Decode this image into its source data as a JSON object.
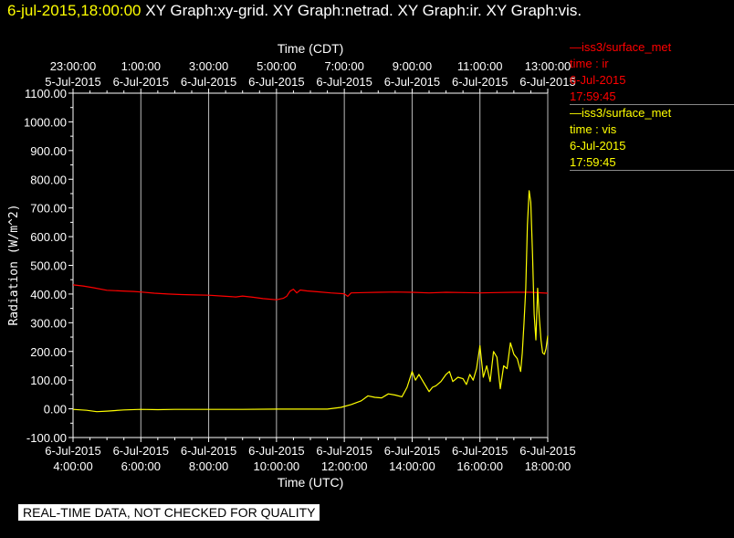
{
  "header": {
    "datetime": "6-jul-2015,18:00:00",
    "graphs": "XY Graph:xy-grid.  XY Graph:netrad.  XY Graph:ir.  XY Graph:vis."
  },
  "legend": {
    "ir": {
      "source": "iss3/surface_met",
      "field": "time : ir",
      "date": "6-Jul-2015",
      "time": "17:59:45"
    },
    "vis": {
      "source": "iss3/surface_met",
      "field": "time : vis",
      "date": "6-Jul-2015",
      "time": "17:59:45"
    }
  },
  "warning": "REAL-TIME DATA, NOT CHECKED FOR QUALITY",
  "colors": {
    "ir": "#ff0000",
    "vis": "#ffff00",
    "grid": "#ffffff",
    "background": "#000000"
  },
  "chart_data": {
    "type": "line",
    "xlabel": "Time (UTC)",
    "x2label": "Time (CDT)",
    "ylabel": "Radiation (W/m^2)",
    "xlim": [
      4.0,
      18.0
    ],
    "ylim": [
      -100,
      1100
    ],
    "yticks": [
      -100,
      0,
      100,
      200,
      300,
      400,
      500,
      600,
      700,
      800,
      900,
      1000,
      1100
    ],
    "ytick_labels": [
      "-100.00",
      "0.00",
      "100.00",
      "200.00",
      "300.00",
      "400.00",
      "500.00",
      "600.00",
      "700.00",
      "800.00",
      "900.00",
      "1000.00",
      "1100.00"
    ],
    "xticks_bottom": [
      {
        "x": 4,
        "date": "6-Jul-2015",
        "time": "4:00:00"
      },
      {
        "x": 6,
        "date": "6-Jul-2015",
        "time": "6:00:00"
      },
      {
        "x": 8,
        "date": "6-Jul-2015",
        "time": "8:00:00"
      },
      {
        "x": 10,
        "date": "6-Jul-2015",
        "time": "10:00:00"
      },
      {
        "x": 12,
        "date": "6-Jul-2015",
        "time": "12:00:00"
      },
      {
        "x": 14,
        "date": "6-Jul-2015",
        "time": "14:00:00"
      },
      {
        "x": 16,
        "date": "6-Jul-2015",
        "time": "16:00:00"
      },
      {
        "x": 18,
        "date": "6-Jul-2015",
        "time": "18:00:00"
      }
    ],
    "xticks_top": [
      {
        "x": 4,
        "time": "23:00:00",
        "date": "5-Jul-2015"
      },
      {
        "x": 6,
        "time": "1:00:00",
        "date": "6-Jul-2015"
      },
      {
        "x": 8,
        "time": "3:00:00",
        "date": "6-Jul-2015"
      },
      {
        "x": 10,
        "time": "5:00:00",
        "date": "6-Jul-2015"
      },
      {
        "x": 12,
        "time": "7:00:00",
        "date": "6-Jul-2015"
      },
      {
        "x": 14,
        "time": "9:00:00",
        "date": "6-Jul-2015"
      },
      {
        "x": 16,
        "time": "11:00:00",
        "date": "6-Jul-2015"
      },
      {
        "x": 18,
        "time": "13:00:00",
        "date": "6-Jul-2015"
      }
    ],
    "grid": true,
    "legend_position": "right",
    "series": [
      {
        "name": "ir",
        "color": "#ff0000",
        "x": [
          4.0,
          4.3,
          4.6,
          5.0,
          5.4,
          5.8,
          6.0,
          6.4,
          6.8,
          7.2,
          7.6,
          8.0,
          8.4,
          8.8,
          9.0,
          9.3,
          9.6,
          10.0,
          10.2,
          10.3,
          10.4,
          10.5,
          10.6,
          10.7,
          10.9,
          11.2,
          11.6,
          12.0,
          12.1,
          12.2,
          12.6,
          13.0,
          13.5,
          14.0,
          14.5,
          15.0,
          15.5,
          16.0,
          16.5,
          17.0,
          17.5,
          18.0
        ],
        "y": [
          432,
          428,
          422,
          413,
          411,
          409,
          407,
          403,
          400,
          398,
          397,
          396,
          393,
          390,
          393,
          389,
          384,
          380,
          385,
          392,
          410,
          417,
          404,
          414,
          411,
          408,
          404,
          401,
          392,
          404,
          405,
          406,
          407,
          406,
          404,
          406,
          405,
          404,
          405,
          406,
          406,
          403
        ]
      },
      {
        "name": "vis",
        "color": "#ffff00",
        "x": [
          4.0,
          4.4,
          4.7,
          5.0,
          5.5,
          6.0,
          6.5,
          7.0,
          8.0,
          9.0,
          10.0,
          11.0,
          11.5,
          11.9,
          12.2,
          12.5,
          12.7,
          12.9,
          13.1,
          13.3,
          13.5,
          13.7,
          13.85,
          14.0,
          14.1,
          14.2,
          14.35,
          14.5,
          14.6,
          14.7,
          14.85,
          15.0,
          15.1,
          15.2,
          15.35,
          15.5,
          15.6,
          15.7,
          15.8,
          15.9,
          16.0,
          16.1,
          16.2,
          16.3,
          16.4,
          16.5,
          16.6,
          16.7,
          16.8,
          16.9,
          17.0,
          17.1,
          17.2,
          17.25,
          17.3,
          17.35,
          17.4,
          17.45,
          17.5,
          17.55,
          17.6,
          17.65,
          17.7,
          17.75,
          17.8,
          17.85,
          17.9,
          17.95,
          18.0
        ],
        "y": [
          -2,
          -5,
          -10,
          -8,
          -4,
          -2,
          -3,
          -2,
          -2,
          -2,
          -1,
          -1,
          -1,
          5,
          15,
          28,
          45,
          40,
          38,
          52,
          48,
          42,
          75,
          130,
          100,
          120,
          90,
          60,
          75,
          80,
          95,
          120,
          130,
          95,
          110,
          105,
          85,
          120,
          100,
          140,
          220,
          110,
          150,
          95,
          200,
          180,
          70,
          150,
          140,
          230,
          190,
          175,
          130,
          195,
          300,
          420,
          640,
          760,
          720,
          540,
          330,
          240,
          420,
          320,
          240,
          195,
          190,
          210,
          255
        ]
      }
    ]
  }
}
